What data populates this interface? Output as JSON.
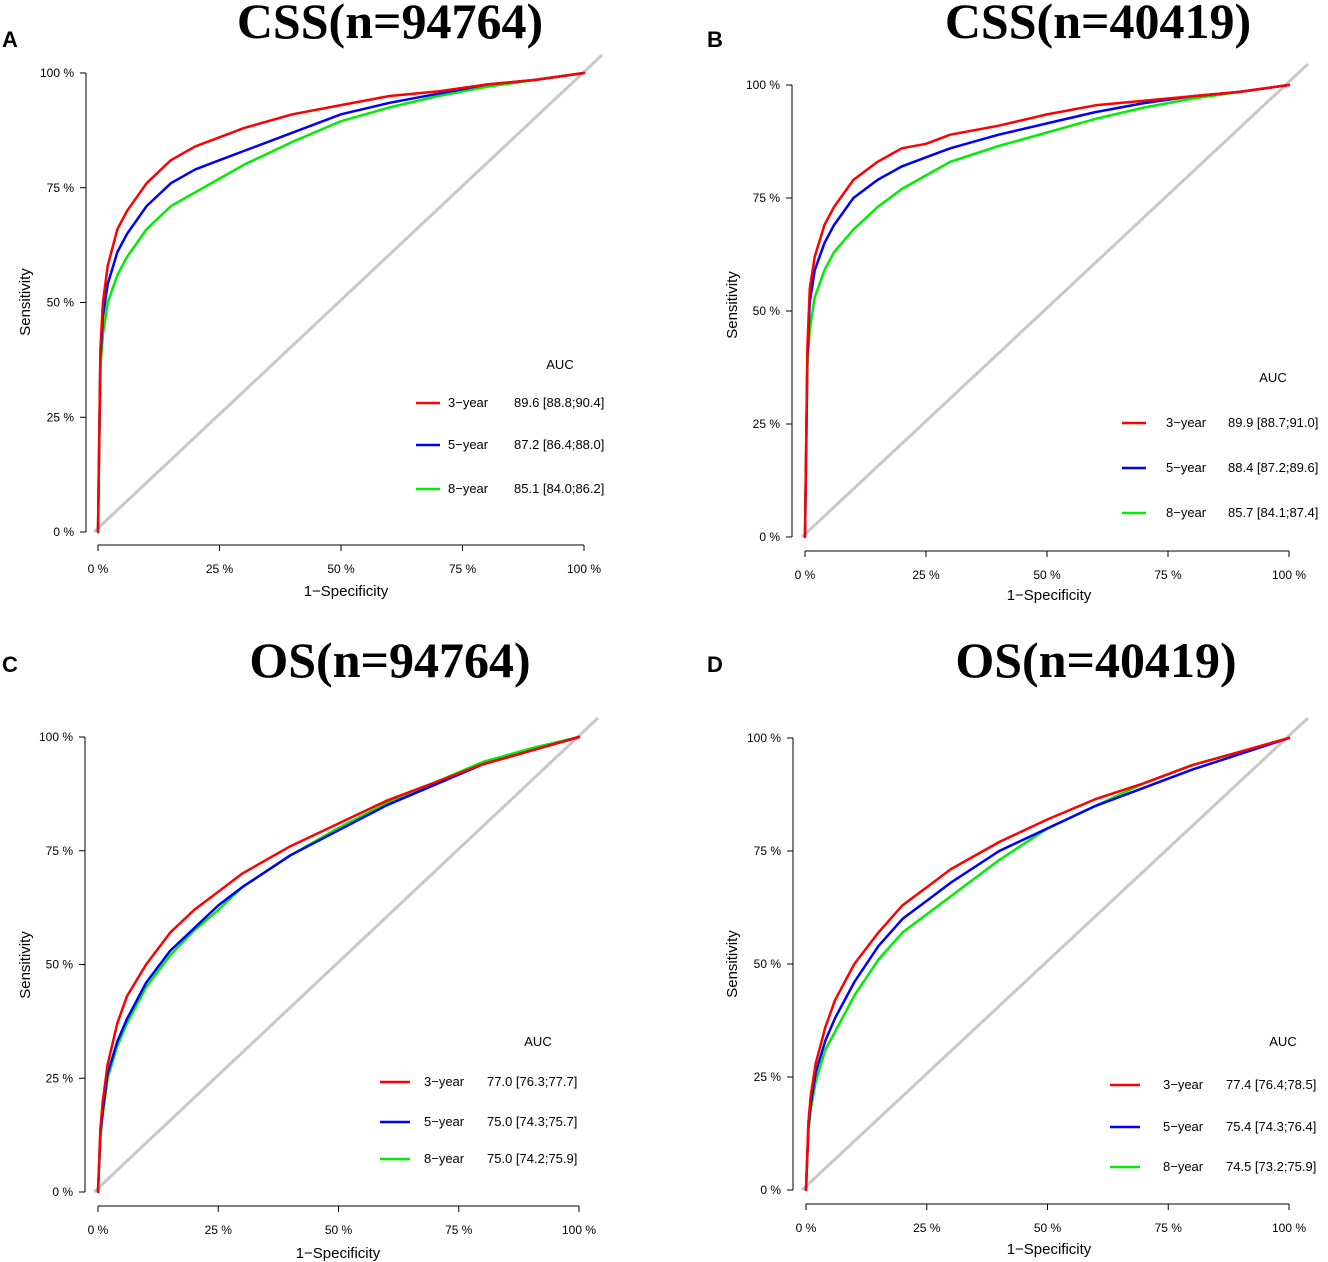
{
  "chart_data": [
    {
      "panel": "A",
      "type": "line",
      "title": "CSS(n=94764)",
      "xlabel": "1−Specificity",
      "ylabel": "Sensitivity",
      "xticks": [
        "0 %",
        "25 %",
        "50 %",
        "75 %",
        "100 %"
      ],
      "yticks": [
        "0 %",
        "25 %",
        "50 %",
        "75 %",
        "100 %"
      ],
      "xlim": [
        0,
        1
      ],
      "ylim": [
        0,
        1
      ],
      "legend_title": "AUC",
      "series": [
        {
          "name": "3-year",
          "label": "3−year",
          "auc": "89.6 [88.8;90.4]",
          "color": "#ff0000",
          "x": [
            0,
            0.005,
            0.01,
            0.02,
            0.04,
            0.06,
            0.1,
            0.15,
            0.2,
            0.25,
            0.3,
            0.4,
            0.5,
            0.6,
            0.7,
            0.8,
            0.9,
            1
          ],
          "y": [
            0,
            0.4,
            0.5,
            0.58,
            0.66,
            0.7,
            0.76,
            0.81,
            0.84,
            0.86,
            0.88,
            0.91,
            0.93,
            0.95,
            0.96,
            0.975,
            0.985,
            1
          ]
        },
        {
          "name": "5-year",
          "label": "5−year",
          "auc": "87.2 [86.4;88.0]",
          "color": "#0000ff",
          "x": [
            0,
            0.005,
            0.01,
            0.02,
            0.04,
            0.06,
            0.1,
            0.15,
            0.2,
            0.25,
            0.3,
            0.4,
            0.5,
            0.6,
            0.7,
            0.8,
            0.9,
            1
          ],
          "y": [
            0,
            0.38,
            0.47,
            0.54,
            0.61,
            0.65,
            0.71,
            0.76,
            0.79,
            0.81,
            0.83,
            0.87,
            0.91,
            0.935,
            0.955,
            0.975,
            0.985,
            1
          ]
        },
        {
          "name": "8-year",
          "label": "8−year",
          "auc": "85.1 [84.0;86.2]",
          "color": "#00ee00",
          "x": [
            0,
            0.005,
            0.01,
            0.02,
            0.04,
            0.06,
            0.1,
            0.15,
            0.2,
            0.25,
            0.3,
            0.4,
            0.5,
            0.6,
            0.7,
            0.8,
            0.9,
            1
          ],
          "y": [
            0,
            0.36,
            0.43,
            0.5,
            0.56,
            0.6,
            0.66,
            0.71,
            0.74,
            0.77,
            0.8,
            0.85,
            0.895,
            0.925,
            0.95,
            0.97,
            0.985,
            1
          ]
        }
      ]
    },
    {
      "panel": "B",
      "type": "line",
      "title": "CSS(n=40419)",
      "xlabel": "1−Specificity",
      "ylabel": "Sensitivity",
      "xticks": [
        "0 %",
        "25 %",
        "50 %",
        "75 %",
        "100 %"
      ],
      "yticks": [
        "0 %",
        "25 %",
        "50 %",
        "75 %",
        "100 %"
      ],
      "xlim": [
        0,
        1
      ],
      "ylim": [
        0,
        1
      ],
      "legend_title": "AUC",
      "series": [
        {
          "name": "3-year",
          "label": "3−year",
          "auc": "89.9 [88.7;91.0]",
          "color": "#ff0000",
          "x": [
            0,
            0.005,
            0.01,
            0.02,
            0.04,
            0.06,
            0.1,
            0.15,
            0.2,
            0.25,
            0.3,
            0.4,
            0.5,
            0.6,
            0.7,
            0.8,
            0.9,
            1
          ],
          "y": [
            0,
            0.42,
            0.55,
            0.62,
            0.69,
            0.73,
            0.79,
            0.83,
            0.86,
            0.87,
            0.89,
            0.91,
            0.935,
            0.955,
            0.965,
            0.975,
            0.985,
            1
          ]
        },
        {
          "name": "5-year",
          "label": "5−year",
          "auc": "88.4 [87.2;89.6]",
          "color": "#0000ff",
          "x": [
            0,
            0.005,
            0.01,
            0.02,
            0.04,
            0.06,
            0.1,
            0.15,
            0.2,
            0.25,
            0.3,
            0.4,
            0.5,
            0.6,
            0.7,
            0.8,
            0.9,
            1
          ],
          "y": [
            0,
            0.4,
            0.52,
            0.59,
            0.65,
            0.69,
            0.75,
            0.79,
            0.82,
            0.84,
            0.86,
            0.89,
            0.915,
            0.94,
            0.96,
            0.975,
            0.985,
            1
          ]
        },
        {
          "name": "8-year",
          "label": "8−year",
          "auc": "85.7 [84.1;87.4]",
          "color": "#00ee00",
          "x": [
            0,
            0.005,
            0.01,
            0.02,
            0.04,
            0.06,
            0.1,
            0.15,
            0.2,
            0.25,
            0.3,
            0.4,
            0.5,
            0.6,
            0.7,
            0.8,
            0.9,
            1
          ],
          "y": [
            0,
            0.38,
            0.46,
            0.53,
            0.59,
            0.63,
            0.68,
            0.73,
            0.77,
            0.8,
            0.83,
            0.865,
            0.895,
            0.925,
            0.95,
            0.97,
            0.985,
            1
          ]
        }
      ]
    },
    {
      "panel": "C",
      "type": "line",
      "title": "OS(n=94764)",
      "xlabel": "1−Specificity",
      "ylabel": "Sensitivity",
      "xticks": [
        "0 %",
        "25 %",
        "50 %",
        "75 %",
        "100 %"
      ],
      "yticks": [
        "0 %",
        "25 %",
        "50 %",
        "75 %",
        "100 %"
      ],
      "xlim": [
        0,
        1
      ],
      "ylim": [
        0,
        1
      ],
      "legend_title": "AUC",
      "series": [
        {
          "name": "3-year",
          "label": "3−year",
          "auc": "77.0 [76.3;77.7]",
          "color": "#ff0000",
          "x": [
            0,
            0.005,
            0.01,
            0.02,
            0.04,
            0.06,
            0.1,
            0.15,
            0.2,
            0.25,
            0.3,
            0.4,
            0.5,
            0.6,
            0.7,
            0.8,
            0.9,
            1
          ],
          "y": [
            0,
            0.14,
            0.2,
            0.28,
            0.37,
            0.43,
            0.5,
            0.57,
            0.62,
            0.66,
            0.7,
            0.76,
            0.81,
            0.86,
            0.9,
            0.94,
            0.97,
            1
          ]
        },
        {
          "name": "5-year",
          "label": "5−year",
          "auc": "75.0 [74.3;75.7]",
          "color": "#0000ff",
          "x": [
            0,
            0.005,
            0.01,
            0.02,
            0.04,
            0.06,
            0.1,
            0.15,
            0.2,
            0.25,
            0.3,
            0.4,
            0.5,
            0.6,
            0.7,
            0.8,
            0.9,
            1
          ],
          "y": [
            0,
            0.13,
            0.18,
            0.26,
            0.33,
            0.38,
            0.46,
            0.53,
            0.58,
            0.63,
            0.67,
            0.74,
            0.795,
            0.85,
            0.895,
            0.94,
            0.97,
            1
          ]
        },
        {
          "name": "8-year",
          "label": "8−year",
          "auc": "75.0 [74.2;75.9]",
          "color": "#00ee00",
          "x": [
            0,
            0.005,
            0.01,
            0.02,
            0.04,
            0.06,
            0.1,
            0.15,
            0.2,
            0.25,
            0.3,
            0.4,
            0.5,
            0.6,
            0.7,
            0.8,
            0.9,
            1
          ],
          "y": [
            0,
            0.12,
            0.17,
            0.25,
            0.32,
            0.37,
            0.45,
            0.52,
            0.575,
            0.62,
            0.67,
            0.74,
            0.8,
            0.855,
            0.9,
            0.945,
            0.975,
            1
          ]
        }
      ]
    },
    {
      "panel": "D",
      "type": "line",
      "title": "OS(n=40419)",
      "xlabel": "1−Specificity",
      "ylabel": "Sensitivity",
      "xticks": [
        "0 %",
        "25 %",
        "50 %",
        "75 %",
        "100 %"
      ],
      "yticks": [
        "0 %",
        "25 %",
        "50 %",
        "75 %",
        "100 %"
      ],
      "xlim": [
        0,
        1
      ],
      "ylim": [
        0,
        1
      ],
      "legend_title": "AUC",
      "series": [
        {
          "name": "3-year",
          "label": "3−year",
          "auc": "77.4 [76.4;78.5]",
          "color": "#ff0000",
          "x": [
            0,
            0.005,
            0.01,
            0.02,
            0.04,
            0.06,
            0.1,
            0.15,
            0.2,
            0.25,
            0.3,
            0.4,
            0.5,
            0.6,
            0.7,
            0.8,
            0.9,
            1
          ],
          "y": [
            0,
            0.15,
            0.21,
            0.28,
            0.36,
            0.42,
            0.5,
            0.57,
            0.63,
            0.67,
            0.71,
            0.77,
            0.82,
            0.865,
            0.9,
            0.94,
            0.97,
            1
          ]
        },
        {
          "name": "5-year",
          "label": "5−year",
          "auc": "75.4 [74.3;76.4]",
          "color": "#0000ff",
          "x": [
            0,
            0.005,
            0.01,
            0.02,
            0.04,
            0.06,
            0.1,
            0.15,
            0.2,
            0.25,
            0.3,
            0.4,
            0.5,
            0.6,
            0.7,
            0.8,
            0.9,
            1
          ],
          "y": [
            0,
            0.14,
            0.19,
            0.26,
            0.33,
            0.38,
            0.46,
            0.54,
            0.6,
            0.64,
            0.68,
            0.75,
            0.8,
            0.85,
            0.89,
            0.93,
            0.965,
            1
          ]
        },
        {
          "name": "8-year",
          "label": "8−year",
          "auc": "74.5 [73.2;75.9]",
          "color": "#00ee00",
          "x": [
            0,
            0.005,
            0.01,
            0.02,
            0.04,
            0.06,
            0.1,
            0.15,
            0.2,
            0.25,
            0.3,
            0.4,
            0.5,
            0.6,
            0.7,
            0.8,
            0.9,
            1
          ],
          "y": [
            0,
            0.13,
            0.18,
            0.24,
            0.31,
            0.35,
            0.43,
            0.51,
            0.57,
            0.61,
            0.65,
            0.73,
            0.8,
            0.85,
            0.9,
            0.94,
            0.97,
            1
          ]
        }
      ]
    }
  ],
  "colors": {
    "diagonal": "#c8c8c8",
    "axis": "#000000"
  }
}
